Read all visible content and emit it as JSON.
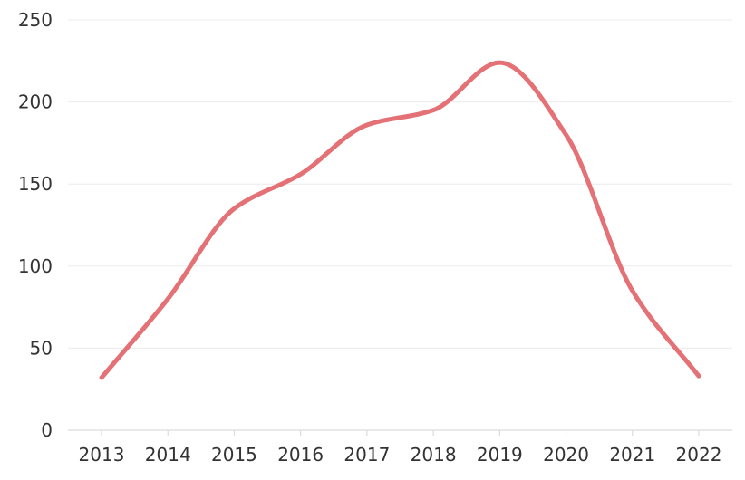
{
  "chart_data": {
    "type": "line",
    "title": "",
    "xlabel": "",
    "ylabel": "",
    "categories": [
      "2013",
      "2014",
      "2015",
      "2016",
      "2017",
      "2018",
      "2019",
      "2020",
      "2021",
      "2022"
    ],
    "series": [
      {
        "values": [
          32,
          80,
          135,
          156,
          186,
          195,
          224,
          180,
          85,
          33
        ]
      }
    ],
    "ylim": [
      0,
      250
    ],
    "yticks": [
      "0",
      "50",
      "100",
      "150",
      "200",
      "250"
    ],
    "grid": true,
    "legend": "none",
    "line_style": "smooth",
    "colors": {
      "series": "#e37175",
      "grid": "#ececec",
      "axis": "#dcdcdc",
      "text": "#333333"
    }
  }
}
